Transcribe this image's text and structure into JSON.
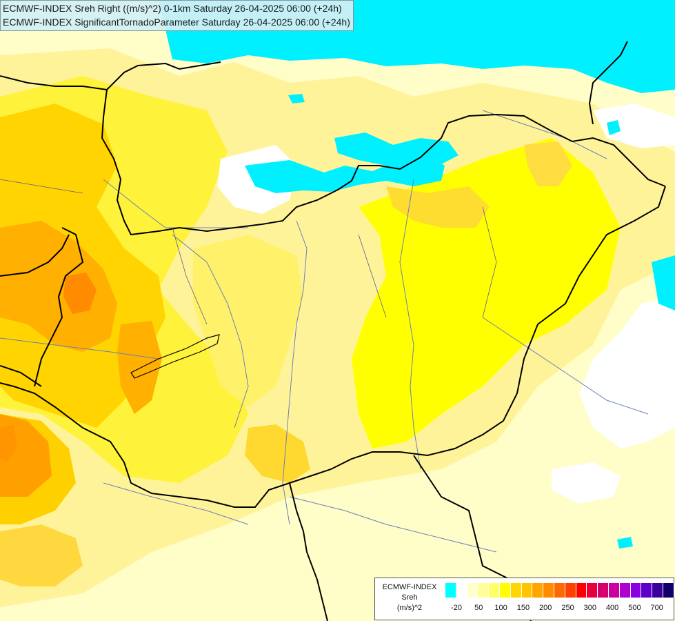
{
  "titles": {
    "line1": "ECMWF-INDEX Sreh Right ((m/s)^2) 0-1km Saturday 26-04-2025 06:00 (+24h)",
    "line2": "ECMWF-INDEX SignificantTornadoParameter Saturday 26-04-2025 06:00 (+24h)"
  },
  "legend": {
    "source": "ECMWF-INDEX",
    "parameter": "Sreh",
    "unit": "(m/s)^2",
    "colors": [
      "#00ffff",
      "#ffffff",
      "#ffffcc",
      "#ffff99",
      "#ffff66",
      "#ffff00",
      "#ffd700",
      "#ffc400",
      "#ffa500",
      "#ff8c00",
      "#ff6a00",
      "#ff4000",
      "#ff0000",
      "#e8003c",
      "#d4006e",
      "#cc00a0",
      "#b000d0",
      "#8a00e0",
      "#5a00c8",
      "#3a0098",
      "#10006a"
    ],
    "ticks": [
      "-20",
      "50",
      "100",
      "150",
      "200",
      "250",
      "300",
      "400",
      "500",
      "700"
    ]
  }
}
